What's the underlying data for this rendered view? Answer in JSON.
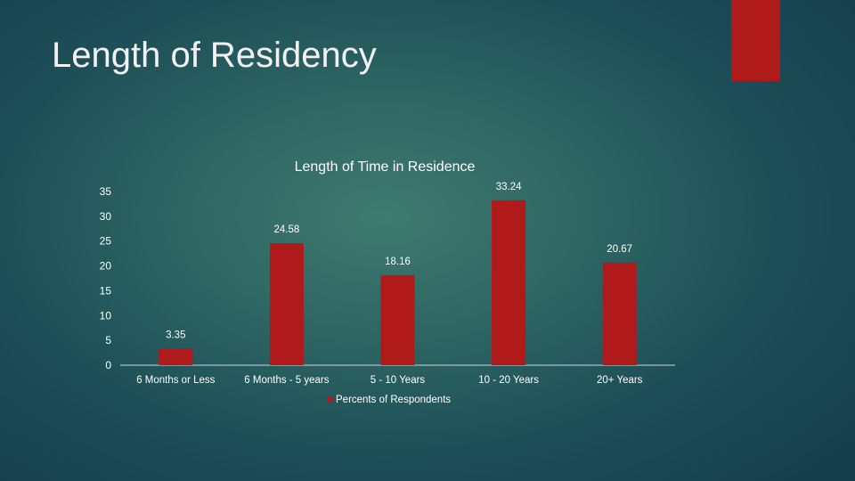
{
  "slide": {
    "title": "Length of Residency",
    "accent_color": "#b01a1a"
  },
  "chart_data": {
    "type": "bar",
    "title": "Length of Time in Residence",
    "categories": [
      "6 Months or Less",
      "6 Months - 5 years",
      "5 - 10 Years",
      "10 - 20 Years",
      "20+ Years"
    ],
    "series": [
      {
        "name": "Percents of Respondents",
        "values": [
          3.35,
          24.58,
          18.16,
          33.24,
          20.67
        ],
        "color": "#b01a1a"
      }
    ],
    "ylim": [
      0,
      35
    ],
    "yticks": [
      0,
      5,
      10,
      15,
      20,
      25,
      30,
      35
    ],
    "data_labels": [
      "3.35",
      "24.58",
      "18.16",
      "33.24",
      "20.67"
    ],
    "grid": false,
    "legend": "bottom"
  }
}
